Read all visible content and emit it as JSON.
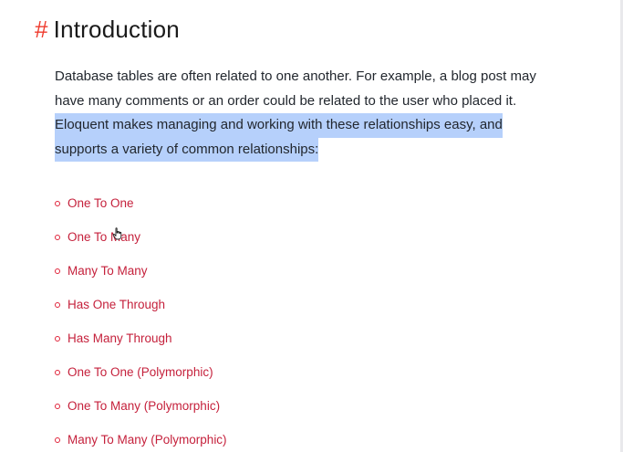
{
  "heading": {
    "hash": "#",
    "title": "Introduction"
  },
  "intro": {
    "line1": "Database tables are often related to one another. For example, a blog post may",
    "line2": "have many comments or an order could be related to the user who placed it.",
    "line3": "Eloquent makes managing and working with these relationships easy, and",
    "line4": "supports a variety of common relationships:"
  },
  "relationships": [
    "One To One",
    "One To Many",
    "Many To Many",
    "Has One Through",
    "Has Many Through",
    "One To One (Polymorphic)",
    "One To Many (Polymorphic)",
    "Many To Many (Polymorphic)"
  ],
  "colors": {
    "accent": "#ef3b2d",
    "link": "#c5213c",
    "selection": "#b6d0fb",
    "text": "#22272e"
  },
  "icons": {
    "cursor": "hand-pointer-icon",
    "bullet": "circle-bullet-icon"
  }
}
